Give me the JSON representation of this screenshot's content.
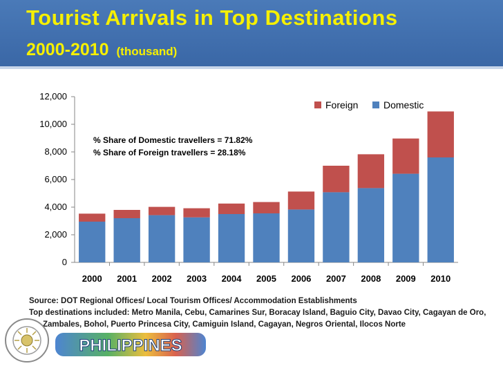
{
  "slide": {
    "title_line1": "Tourist Arrivals in Top Destinations",
    "title_line2": "2000-2010",
    "title_unit": "(thousand)"
  },
  "chart_data": {
    "type": "bar",
    "stacked": true,
    "categories": [
      "2000",
      "2001",
      "2002",
      "2003",
      "2004",
      "2005",
      "2006",
      "2007",
      "2008",
      "2009",
      "2010"
    ],
    "series": [
      {
        "name": "Domestic",
        "color": "#4f81bd",
        "values": [
          2950,
          3200,
          3420,
          3260,
          3500,
          3550,
          3830,
          5080,
          5380,
          6420,
          7600
        ]
      },
      {
        "name": "Foreign",
        "color": "#c0504d",
        "values": [
          580,
          600,
          600,
          660,
          760,
          820,
          1300,
          1920,
          2450,
          2550,
          3330
        ]
      }
    ],
    "ylim": [
      0,
      12000
    ],
    "yticks": [
      "0",
      "2,000",
      "4,000",
      "6,000",
      "8,000",
      "10,000",
      "12,000"
    ],
    "legend_position": "top-right",
    "legend_order": [
      "Foreign",
      "Domestic"
    ],
    "annotations": [
      "% Share of Domestic travellers  = 71.82%",
      "% Share of Foreign travellers = 28.18%"
    ],
    "grid": false
  },
  "notes": {
    "source": "Source:  DOT Regional Offices/ Local Tourism Offices/ Accommodation Establishments",
    "destinations_1": "Top destinations included:  Metro Manila, Cebu, Camarines Sur, Boracay Island, Baguio City, Davao City, Cagayan de Oro,",
    "destinations_2": "Zambales, Bohol, Puerto Princesa City, Camiguin Island, Cagayan, Negros Oriental, Ilocos Norte"
  },
  "branding": {
    "seal_ring_text": "DEPARTMENT OF TOURISM",
    "seal_bottom_text": "PHILIPPINES",
    "logo_text": "PHILIPPINES"
  }
}
